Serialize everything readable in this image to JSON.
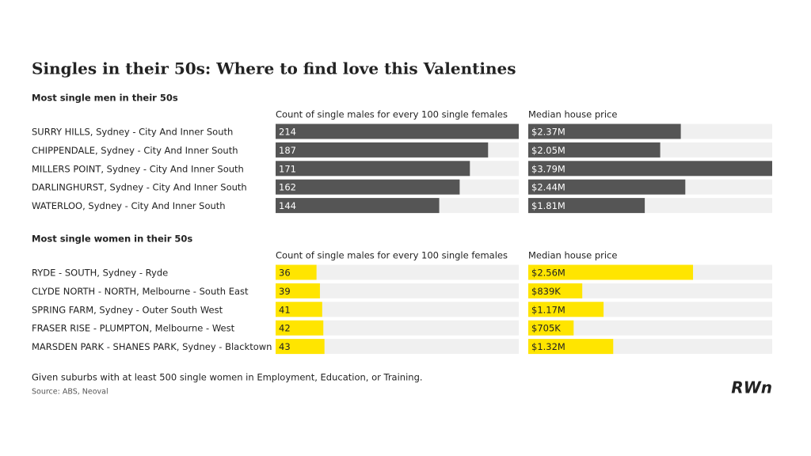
{
  "title": "Singles in their 50s: Where to find love this Valentines",
  "chart_data": [
    {
      "type": "bar",
      "subtitle": "Most single men in their 50s",
      "categories": [
        "SURRY HILLS, Sydney - City And Inner South",
        "CHIPPENDALE, Sydney - City And Inner South",
        "MILLERS POINT, Sydney - City And Inner South",
        "DARLINGHURST, Sydney - City And Inner South",
        "WATERLOO, Sydney - City And Inner South"
      ],
      "series": [
        {
          "name": "Count of single males for every 100 single females",
          "color": "#555555",
          "values": [
            214,
            187,
            171,
            162,
            144
          ],
          "xlim": [
            0,
            214
          ]
        },
        {
          "name": "Median house price",
          "color": "#555555",
          "values": [
            2370000,
            2050000,
            3790000,
            2440000,
            1810000
          ],
          "value_labels": [
            "$2.37M",
            "$2.05M",
            "$3.79M",
            "$2.44M",
            "$1.81M"
          ],
          "xlim": [
            0,
            3790000
          ]
        }
      ]
    },
    {
      "type": "bar",
      "subtitle": "Most single women in their 50s",
      "categories": [
        "RYDE - SOUTH, Sydney - Ryde",
        "CLYDE NORTH - NORTH, Melbourne - South East",
        "SPRING FARM, Sydney - Outer South West",
        "FRASER RISE - PLUMPTON, Melbourne - West",
        "MARSDEN PARK - SHANES PARK, Sydney - Blacktown"
      ],
      "series": [
        {
          "name": "Count of single males for every 100 single females",
          "color": "#ffe500",
          "values": [
            36,
            39,
            41,
            42,
            43
          ],
          "xlim": [
            0,
            214
          ]
        },
        {
          "name": "Median house price",
          "color": "#ffe500",
          "values": [
            2560000,
            839000,
            1170000,
            705000,
            1320000
          ],
          "value_labels": [
            "$2.56M",
            "$839K",
            "$1.17M",
            "$705K",
            "$1.32M"
          ],
          "xlim": [
            0,
            3790000
          ]
        }
      ]
    }
  ],
  "note": "Given suburbs with at least 500 single women in Employment, Education, or Training.",
  "source": "Source: ABS, Neoval",
  "logo": "RWn"
}
